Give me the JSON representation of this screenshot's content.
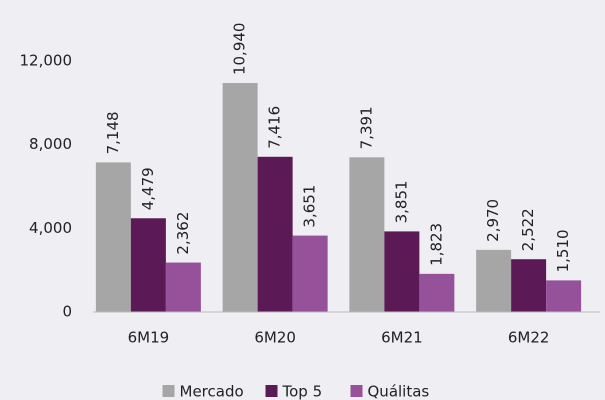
{
  "chart_data": {
    "type": "bar",
    "categories": [
      "6M19",
      "6M20",
      "6M21",
      "6M22"
    ],
    "series": [
      {
        "name": "Mercado",
        "color": "#a6a6a6",
        "values": [
          7148,
          10940,
          7391,
          2970
        ],
        "value_labels": [
          "7,148",
          "10,940",
          "7,391",
          "2,970"
        ]
      },
      {
        "name": "Top 5",
        "color": "#5b1a56",
        "values": [
          4479,
          7416,
          3851,
          2522
        ],
        "value_labels": [
          "4,479",
          "7,416",
          "3,851",
          "2,522"
        ]
      },
      {
        "name": "Quálitas",
        "color": "#955199",
        "values": [
          2362,
          3651,
          1823,
          1510
        ],
        "value_labels": [
          "2,362",
          "3,651",
          "1,823",
          "1,510"
        ]
      }
    ],
    "ylim": [
      0,
      14000
    ],
    "yticks": [
      {
        "value": 0,
        "label": "0"
      },
      {
        "value": 4000,
        "label": "4,000"
      },
      {
        "value": 8000,
        "label": "8,000"
      },
      {
        "value": 12000,
        "label": "12,000"
      }
    ],
    "legend": "bottom"
  }
}
